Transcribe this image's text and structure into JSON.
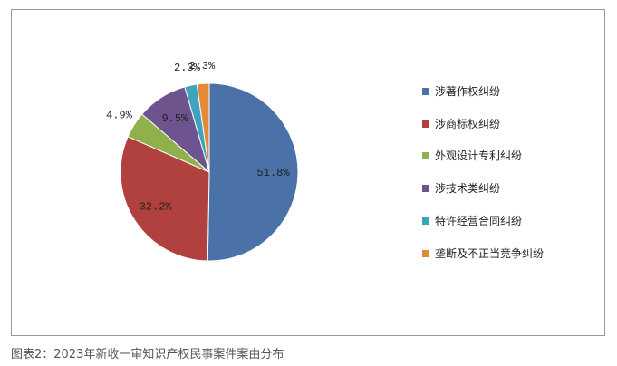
{
  "chart_data": {
    "type": "pie",
    "categories": [
      "涉著作权纠纷",
      "涉商标权纠纷",
      "外观设计专利纠纷",
      "涉技术类纠纷",
      "特许经营合同纠纷",
      "垄断及不正当竞争纠纷"
    ],
    "values": [
      51.8,
      32.2,
      4.9,
      9.5,
      2.3,
      2.3
    ],
    "value_labels": [
      "51.8%",
      "32.2%",
      "4.9%",
      "9.5%",
      "2.3%",
      "2.3%"
    ],
    "colors": [
      "#4a72a8",
      "#b0413e",
      "#8fb04a",
      "#6e548e",
      "#3fa3be",
      "#e08a3a"
    ],
    "legend_position": "right",
    "caption": "图表2：2023年新收一审知识产权民事案件案由分布"
  }
}
